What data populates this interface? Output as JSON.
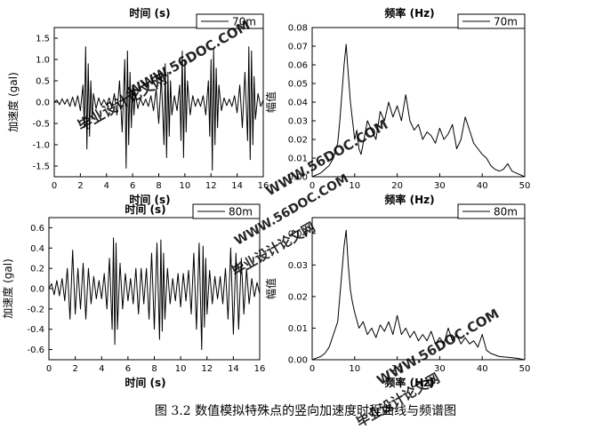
{
  "caption": "图 3.2 数值模拟特殊点的竖向加速度时程曲线与频谱图",
  "watermarks": [
    "毕业设计论文网",
    "WWW.56DOC.COM"
  ],
  "colors": {
    "ink": "#000000",
    "watermark": "#e0201b",
    "background": "#ffffff"
  },
  "chart_data": [
    {
      "type": "line",
      "title": "时间 (s)",
      "xlabel": "时间 (s)",
      "ylabel": "加速度 (gal)",
      "xlim": [
        0,
        16
      ],
      "ylim": [
        -1.75,
        1.75
      ],
      "xticks": [
        0,
        2,
        4,
        6,
        8,
        10,
        12,
        14,
        16
      ],
      "yticks": [
        -1.5,
        -1.0,
        -0.5,
        0.0,
        0.5,
        1.0,
        1.5
      ],
      "ytick_labels": [
        "-1.5",
        "-1.0",
        "-0.5",
        "0.0",
        "0.5",
        "1.0",
        "1.5"
      ],
      "legend": {
        "label": "70m",
        "position": "top-right"
      },
      "series": [
        {
          "name": "70m",
          "x": [
            0.0,
            0.2,
            0.4,
            0.6,
            0.8,
            1.0,
            1.2,
            1.4,
            1.6,
            1.8,
            2.0,
            2.2,
            2.3,
            2.4,
            2.5,
            2.6,
            2.7,
            2.8,
            2.9,
            3.0,
            3.2,
            3.4,
            3.6,
            3.8,
            4.0,
            4.2,
            4.4,
            4.6,
            4.8,
            5.0,
            5.2,
            5.4,
            5.5,
            5.6,
            5.7,
            5.8,
            5.9,
            6.0,
            6.1,
            6.2,
            6.4,
            6.6,
            6.8,
            7.0,
            7.2,
            7.4,
            7.6,
            7.8,
            8.0,
            8.2,
            8.4,
            8.5,
            8.6,
            8.7,
            8.8,
            8.9,
            9.0,
            9.2,
            9.4,
            9.6,
            9.7,
            9.8,
            9.9,
            10.0,
            10.1,
            10.2,
            10.4,
            10.6,
            10.8,
            11.0,
            11.2,
            11.4,
            11.6,
            11.8,
            11.9,
            12.0,
            12.1,
            12.2,
            12.3,
            12.4,
            12.5,
            12.6,
            12.8,
            13.0,
            13.2,
            13.4,
            13.6,
            13.8,
            14.0,
            14.2,
            14.4,
            14.6,
            14.8,
            14.9,
            15.0,
            15.1,
            15.2,
            15.3,
            15.4,
            15.6,
            15.8,
            16.0
          ],
          "y": [
            0.0,
            0.05,
            -0.06,
            0.08,
            -0.05,
            0.07,
            -0.1,
            0.12,
            -0.1,
            0.15,
            -0.2,
            0.4,
            -0.6,
            1.3,
            -1.1,
            0.9,
            -0.8,
            0.5,
            -0.4,
            0.2,
            -0.15,
            0.1,
            -0.08,
            0.06,
            -0.07,
            0.1,
            -0.12,
            0.2,
            -0.3,
            0.5,
            -0.7,
            1.0,
            -1.55,
            1.2,
            -1.0,
            0.7,
            -0.6,
            0.4,
            -0.3,
            0.2,
            -0.15,
            0.1,
            -0.08,
            0.07,
            -0.1,
            0.15,
            -0.2,
            0.3,
            -0.5,
            0.6,
            -1.0,
            0.9,
            -1.3,
            0.7,
            -0.8,
            0.5,
            -0.3,
            0.15,
            -0.2,
            0.4,
            -0.9,
            1.2,
            -1.3,
            1.0,
            -0.7,
            0.5,
            -0.3,
            0.15,
            -0.1,
            0.08,
            -0.1,
            0.15,
            -0.3,
            0.5,
            -0.8,
            1.0,
            -1.6,
            1.25,
            -1.0,
            0.8,
            -0.6,
            0.4,
            -0.2,
            0.1,
            -0.08,
            0.07,
            -0.1,
            0.15,
            -0.25,
            0.4,
            -0.6,
            0.7,
            -0.9,
            1.3,
            -1.35,
            1.2,
            -1.0,
            0.6,
            -0.4,
            0.2,
            -0.1,
            0.05
          ]
        }
      ]
    },
    {
      "type": "line",
      "title": "频率 (Hz)",
      "xlabel": "频率 (Hz)",
      "ylabel": "幅值",
      "xlim": [
        0,
        50
      ],
      "ylim": [
        0,
        0.08
      ],
      "xticks": [
        0,
        10,
        20,
        30,
        40,
        50
      ],
      "yticks": [
        0.0,
        0.01,
        0.02,
        0.03,
        0.04,
        0.05,
        0.06,
        0.07,
        0.08
      ],
      "ytick_labels": [
        "0.00",
        "0.01",
        "0.02",
        "0.03",
        "0.04",
        "0.05",
        "0.06",
        "0.07",
        "0.08"
      ],
      "legend": {
        "label": "70m",
        "position": "top-right"
      },
      "series": [
        {
          "name": "70m",
          "x": [
            0,
            1,
            2,
            3,
            4,
            5,
            6,
            6.5,
            7,
            7.5,
            8,
            8.5,
            9,
            9.5,
            10,
            10.5,
            11,
            11.5,
            12,
            13,
            14,
            15,
            16,
            17,
            18,
            19,
            20,
            21,
            22,
            23,
            24,
            25,
            26,
            27,
            28,
            29,
            30,
            31,
            32,
            33,
            34,
            35,
            36,
            37,
            38,
            39,
            40,
            41,
            42,
            43,
            44,
            45,
            46,
            47,
            48,
            49,
            50
          ],
          "y": [
            0.0,
            0.001,
            0.002,
            0.004,
            0.006,
            0.01,
            0.018,
            0.03,
            0.045,
            0.06,
            0.071,
            0.055,
            0.04,
            0.03,
            0.02,
            0.025,
            0.015,
            0.012,
            0.018,
            0.03,
            0.025,
            0.02,
            0.035,
            0.03,
            0.04,
            0.032,
            0.038,
            0.03,
            0.044,
            0.03,
            0.025,
            0.028,
            0.02,
            0.024,
            0.022,
            0.018,
            0.026,
            0.02,
            0.023,
            0.028,
            0.015,
            0.02,
            0.032,
            0.025,
            0.018,
            0.015,
            0.012,
            0.01,
            0.006,
            0.004,
            0.003,
            0.004,
            0.007,
            0.003,
            0.002,
            0.001,
            0.0
          ]
        }
      ]
    },
    {
      "type": "line",
      "title": "时间 (s)",
      "xlabel": "时间 (s)",
      "ylabel": "加速度 (gal)",
      "xlim": [
        0,
        16
      ],
      "ylim": [
        -0.7,
        0.7
      ],
      "xticks": [
        0,
        2,
        4,
        6,
        8,
        10,
        12,
        14,
        16
      ],
      "yticks": [
        -0.6,
        -0.4,
        -0.2,
        0.0,
        0.2,
        0.4,
        0.6
      ],
      "ytick_labels": [
        "-0.6",
        "-0.4",
        "-0.2",
        "0.0",
        "0.2",
        "0.4",
        "0.6"
      ],
      "legend": {
        "label": "80m",
        "position": "top-right"
      },
      "series": [
        {
          "name": "80m",
          "x": [
            0.0,
            0.2,
            0.4,
            0.6,
            0.8,
            1.0,
            1.2,
            1.4,
            1.6,
            1.8,
            2.0,
            2.2,
            2.4,
            2.6,
            2.8,
            3.0,
            3.2,
            3.4,
            3.6,
            3.8,
            4.0,
            4.2,
            4.4,
            4.6,
            4.8,
            4.9,
            5.0,
            5.1,
            5.2,
            5.4,
            5.6,
            5.8,
            6.0,
            6.2,
            6.4,
            6.6,
            6.8,
            7.0,
            7.2,
            7.4,
            7.6,
            7.8,
            8.0,
            8.2,
            8.4,
            8.5,
            8.6,
            8.7,
            8.8,
            9.0,
            9.2,
            9.4,
            9.6,
            9.8,
            10.0,
            10.2,
            10.4,
            10.6,
            10.8,
            11.0,
            11.2,
            11.4,
            11.6,
            11.7,
            11.8,
            11.9,
            12.0,
            12.2,
            12.4,
            12.6,
            12.8,
            13.0,
            13.2,
            13.4,
            13.6,
            13.8,
            14.0,
            14.2,
            14.4,
            14.6,
            14.8,
            15.0,
            15.2,
            15.4,
            15.6,
            15.8,
            16.0
          ],
          "y": [
            0.0,
            0.05,
            -0.06,
            0.08,
            -0.07,
            0.1,
            -0.12,
            0.2,
            -0.3,
            0.38,
            -0.25,
            0.2,
            -0.2,
            0.25,
            -0.3,
            0.2,
            -0.15,
            0.12,
            -0.1,
            0.08,
            -0.1,
            0.15,
            -0.2,
            0.3,
            -0.4,
            0.5,
            -0.55,
            0.45,
            -0.4,
            0.25,
            -0.2,
            0.15,
            -0.12,
            0.1,
            -0.15,
            0.2,
            -0.25,
            0.2,
            -0.15,
            0.2,
            -0.3,
            0.35,
            -0.4,
            0.45,
            -0.5,
            0.48,
            -0.42,
            0.35,
            -0.3,
            0.2,
            -0.15,
            0.1,
            -0.12,
            0.15,
            -0.18,
            0.15,
            -0.12,
            0.18,
            -0.25,
            0.35,
            -0.4,
            0.45,
            -0.6,
            0.42,
            -0.38,
            0.3,
            -0.25,
            0.18,
            -0.15,
            0.12,
            -0.1,
            0.12,
            -0.15,
            0.2,
            -0.3,
            0.4,
            -0.45,
            0.35,
            -0.4,
            0.3,
            -0.25,
            0.2,
            -0.15,
            0.1,
            -0.08,
            0.06,
            -0.05
          ]
        }
      ]
    },
    {
      "type": "line",
      "title": "",
      "xlabel": "频率 (Hz)",
      "ylabel": "幅值",
      "xlim": [
        0,
        50
      ],
      "ylim": [
        0,
        0.045
      ],
      "xticks": [
        0,
        10,
        20,
        30,
        40,
        50
      ],
      "yticks": [
        0.0,
        0.01,
        0.02,
        0.03,
        0.04
      ],
      "ytick_labels": [
        "0.00",
        "0.01",
        "0.02",
        "0.03",
        "0.04"
      ],
      "legend": {
        "label": "80m",
        "position": "top-right"
      },
      "series": [
        {
          "name": "80m",
          "x": [
            0,
            1,
            2,
            3,
            4,
            5,
            6,
            6.5,
            7,
            7.5,
            8,
            8.5,
            9,
            9.5,
            10,
            11,
            12,
            13,
            14,
            15,
            16,
            17,
            18,
            19,
            20,
            21,
            22,
            23,
            24,
            25,
            26,
            27,
            28,
            29,
            30,
            31,
            32,
            33,
            34,
            35,
            36,
            37,
            38,
            39,
            40,
            41,
            42,
            44,
            46,
            48,
            50
          ],
          "y": [
            0.0,
            0.0005,
            0.001,
            0.002,
            0.004,
            0.008,
            0.012,
            0.02,
            0.028,
            0.036,
            0.041,
            0.03,
            0.022,
            0.018,
            0.015,
            0.01,
            0.012,
            0.008,
            0.01,
            0.007,
            0.011,
            0.009,
            0.012,
            0.008,
            0.014,
            0.008,
            0.01,
            0.007,
            0.009,
            0.006,
            0.008,
            0.006,
            0.009,
            0.005,
            0.007,
            0.005,
            0.01,
            0.006,
            0.008,
            0.005,
            0.007,
            0.005,
            0.006,
            0.004,
            0.008,
            0.003,
            0.002,
            0.001,
            0.0008,
            0.0005,
            0.0
          ]
        }
      ]
    }
  ]
}
